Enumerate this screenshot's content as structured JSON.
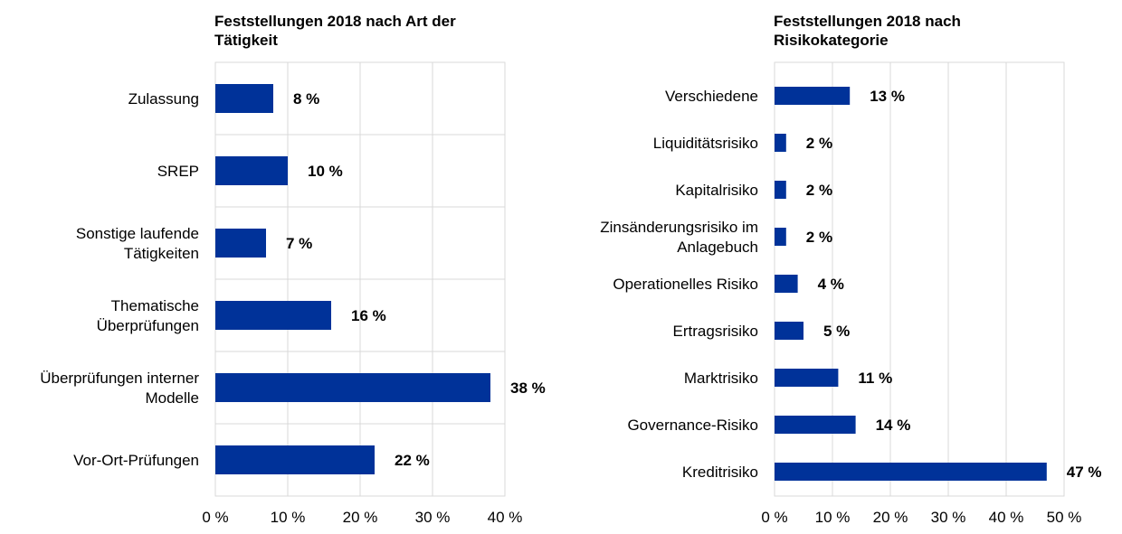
{
  "chart_data": [
    {
      "type": "bar",
      "orientation": "horizontal",
      "title_lines": [
        "Feststellungen 2018 nach Art der",
        "Tätigkeit"
      ],
      "categories": [
        [
          "Zulassung"
        ],
        [
          "SREP"
        ],
        [
          "Sonstige laufende",
          "Tätigkeiten"
        ],
        [
          "Thematische",
          "Überprüfungen"
        ],
        [
          "Überprüfungen interner",
          "Modelle"
        ],
        [
          "Vor-Ort-Prüfungen"
        ]
      ],
      "values": [
        8,
        10,
        7,
        16,
        38,
        22
      ],
      "data_labels": [
        "8 %",
        "10 %",
        "7 %",
        "16 %",
        "38 %",
        "22 %"
      ],
      "xlim": [
        0,
        40
      ],
      "ticks": [
        0,
        10,
        20,
        30,
        40
      ],
      "tick_labels": [
        "0 %",
        "10 %",
        "20 %",
        "30 %",
        "40 %"
      ],
      "grid": true,
      "bar_color": "#003299"
    },
    {
      "type": "bar",
      "orientation": "horizontal",
      "title_lines": [
        "Feststellungen 2018 nach",
        "Risikokategorie"
      ],
      "categories": [
        [
          "Verschiedene"
        ],
        [
          "Liquiditätsrisiko"
        ],
        [
          "Kapitalrisiko"
        ],
        [
          "Zinsänderungsrisiko im",
          "Anlagebuch"
        ],
        [
          "Operationelles Risiko"
        ],
        [
          "Ertragsrisiko"
        ],
        [
          "Marktrisiko"
        ],
        [
          "Governance-Risiko"
        ],
        [
          "Kreditrisiko"
        ]
      ],
      "values": [
        13,
        2,
        2,
        2,
        4,
        5,
        11,
        14,
        47
      ],
      "data_labels": [
        "13 %",
        "2 %",
        "2 %",
        "2 %",
        "4 %",
        "5 %",
        "11 %",
        "14 %",
        "47 %"
      ],
      "xlim": [
        0,
        50
      ],
      "ticks": [
        0,
        10,
        20,
        30,
        40,
        50
      ],
      "tick_labels": [
        "0 %",
        "10 %",
        "20 %",
        "30 %",
        "40 %",
        "50 %"
      ],
      "grid": true,
      "bar_color": "#003299"
    }
  ]
}
